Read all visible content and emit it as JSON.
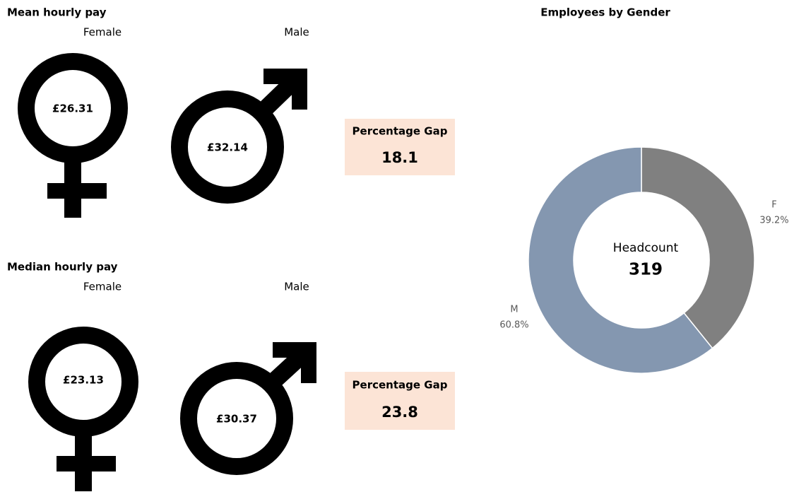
{
  "mean": {
    "title": "Mean hourly pay",
    "female_label": "Female",
    "male_label": "Male",
    "female_value": "£26.31",
    "male_value": "£32.14",
    "gap_label": "Percentage Gap",
    "gap": 18.1
  },
  "median": {
    "title": "Median hourly pay",
    "female_label": "Female",
    "male_label": "Male",
    "female_value": "£23.13",
    "male_value": "£30.37",
    "gap_label": "Percentage Gap",
    "gap": 23.8
  },
  "chart_data": {
    "type": "donut",
    "title": "Employees by Gender",
    "center_label": "Headcount",
    "center_value": 319,
    "categories": [
      "F",
      "M"
    ],
    "values": [
      39.2,
      60.8
    ],
    "value_labels": [
      "39.2%",
      "60.8%"
    ],
    "colors": [
      "#808080",
      "#8497b0"
    ]
  }
}
